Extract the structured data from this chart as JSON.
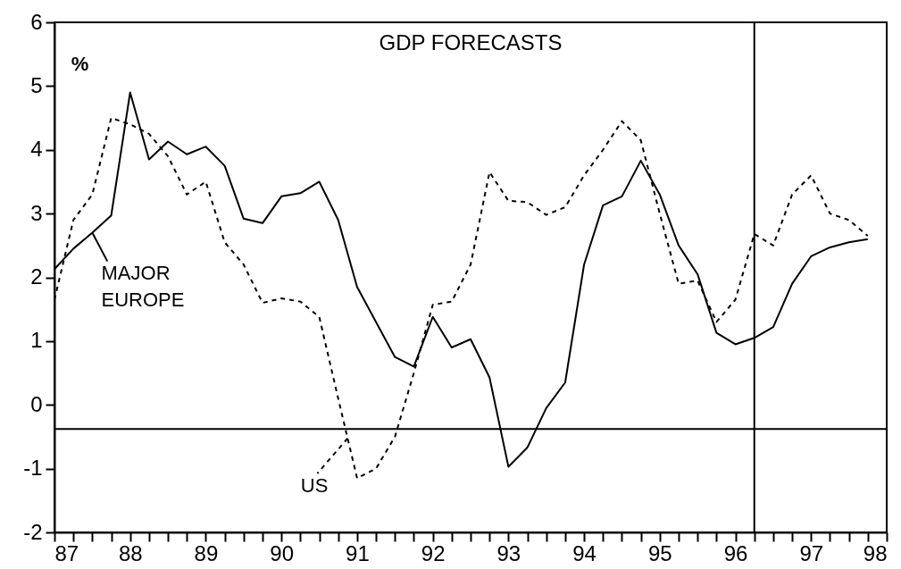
{
  "chart_data": {
    "type": "line",
    "title": "GDP FORECASTS",
    "ylabel": "%",
    "x": [
      87,
      87.25,
      87.5,
      87.75,
      88,
      88.25,
      88.5,
      88.75,
      89,
      89.25,
      89.5,
      89.75,
      90,
      90.25,
      90.5,
      90.75,
      91,
      91.25,
      91.5,
      91.75,
      92,
      92.25,
      92.5,
      92.75,
      93,
      93.25,
      93.5,
      93.75,
      94,
      94.25,
      94.5,
      94.75,
      95,
      95.25,
      95.5,
      95.75,
      96,
      96.25,
      96.5,
      96.75,
      97,
      97.25,
      97.5,
      97.75
    ],
    "series": [
      {
        "name": "MAJOR EUROPE",
        "color": "#000000",
        "line_style": "solid",
        "values": [
          2.13,
          2.45,
          2.7,
          2.97,
          4.9,
          3.85,
          4.13,
          3.93,
          4.05,
          3.75,
          2.92,
          2.85,
          3.27,
          3.32,
          3.5,
          2.9,
          1.85,
          1.3,
          0.75,
          0.6,
          1.38,
          0.9,
          1.03,
          0.43,
          -0.97,
          -0.67,
          -0.05,
          0.35,
          2.2,
          3.13,
          3.27,
          3.83,
          3.3,
          2.5,
          2.05,
          1.13,
          0.95,
          1.05,
          1.22,
          1.9,
          2.33,
          2.47,
          2.55,
          2.6
        ]
      },
      {
        "name": "US",
        "color": "#000000",
        "line_style": "dashed",
        "values": [
          1.65,
          2.9,
          3.3,
          4.5,
          4.4,
          4.25,
          3.9,
          3.3,
          3.5,
          2.55,
          2.2,
          1.6,
          1.67,
          1.62,
          1.38,
          0.1,
          -1.15,
          -1.0,
          -0.5,
          0.5,
          1.57,
          1.62,
          2.2,
          3.65,
          3.2,
          3.18,
          2.98,
          3.1,
          3.6,
          4.0,
          4.45,
          4.15,
          3.0,
          1.9,
          1.95,
          1.3,
          1.65,
          2.68,
          2.5,
          3.3,
          3.6,
          3.0,
          2.9,
          2.65
        ]
      }
    ],
    "ref_lines": [
      {
        "axis": "y",
        "value": -0.38,
        "color": "#000000"
      },
      {
        "axis": "x",
        "value": 96.25,
        "color": "#000000"
      }
    ],
    "xlim": [
      87,
      98
    ],
    "ylim": [
      -2,
      6
    ],
    "xticks": [
      87,
      {
        "value": 87.25,
        "label": null
      },
      {
        "value": 87.5,
        "label": null
      },
      {
        "value": 87.75,
        "label": null
      },
      88,
      {
        "value": 88.25,
        "label": null
      },
      {
        "value": 88.5,
        "label": null
      },
      {
        "value": 88.75,
        "label": null
      },
      89,
      {
        "value": 89.25,
        "label": null
      },
      {
        "value": 89.5,
        "label": null
      },
      {
        "value": 89.75,
        "label": null
      },
      90,
      {
        "value": 90.25,
        "label": null
      },
      {
        "value": 90.5,
        "label": null
      },
      {
        "value": 90.75,
        "label": null
      },
      91,
      {
        "value": 91.25,
        "label": null
      },
      {
        "value": 91.5,
        "label": null
      },
      {
        "value": 91.75,
        "label": null
      },
      92,
      {
        "value": 92.25,
        "label": null
      },
      {
        "value": 92.5,
        "label": null
      },
      {
        "value": 92.75,
        "label": null
      },
      93,
      {
        "value": 93.25,
        "label": null
      },
      {
        "value": 93.5,
        "label": null
      },
      {
        "value": 93.75,
        "label": null
      },
      94,
      {
        "value": 94.25,
        "label": null
      },
      {
        "value": 94.5,
        "label": null
      },
      {
        "value": 94.75,
        "label": null
      },
      95,
      {
        "value": 95.25,
        "label": null
      },
      {
        "value": 95.5,
        "label": null
      },
      {
        "value": 95.75,
        "label": null
      },
      96,
      {
        "value": 96.25,
        "label": null
      },
      {
        "value": 96.5,
        "label": null
      },
      {
        "value": 96.75,
        "label": null
      },
      97,
      {
        "value": 97.25,
        "label": null
      },
      {
        "value": 97.5,
        "label": null
      },
      {
        "value": 97.75,
        "label": null
      },
      98
    ],
    "yticks": [
      -2,
      -1,
      0,
      1,
      2,
      3,
      4,
      5,
      6
    ],
    "grid": false,
    "legend": "left",
    "marker": "none"
  }
}
